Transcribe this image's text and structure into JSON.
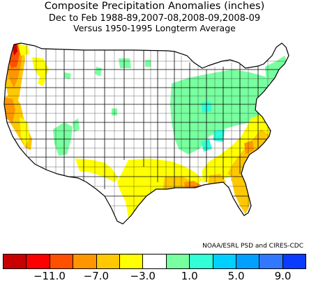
{
  "header": {
    "title": "Composite Precipitation Anomalies (inches)",
    "subtitle": "Dec to Feb  1988-89,2007-08,2008-09,2008-09",
    "baseline": "Versus 1950-1995 Longterm Average"
  },
  "credit": "NOAA/ESRL PSD and CIRES-CDC",
  "legend": {
    "colors": [
      "#c80000",
      "#ff0000",
      "#ff5000",
      "#ff9600",
      "#ffc800",
      "#ffff00",
      "#ffffff",
      "#78ffa0",
      "#30ffd8",
      "#00d0ff",
      "#00a0ff",
      "#3278ff",
      "#0a3cff"
    ],
    "ticks": [
      {
        "label": "−11.0",
        "after_cell": 1
      },
      {
        "label": "−7.0",
        "after_cell": 3
      },
      {
        "label": "−3.0",
        "after_cell": 5
      },
      {
        "label": "1.0",
        "after_cell": 7
      },
      {
        "label": "5.0",
        "after_cell": 9
      },
      {
        "label": "9.0",
        "after_cell": 11
      }
    ]
  }
}
